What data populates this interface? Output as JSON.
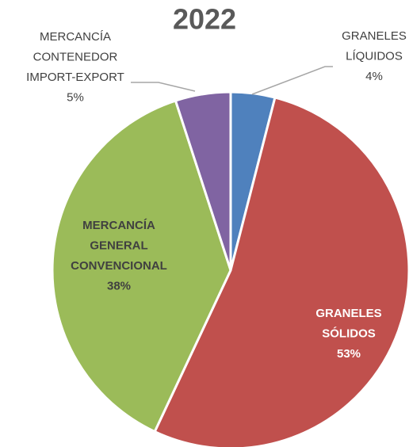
{
  "chart_data": {
    "type": "pie",
    "title": "2022",
    "categories": [
      "GRANELES LÍQUIDOS",
      "GRANELES SÓLIDOS",
      "MERCANCÍA GENERAL CONVENCIONAL",
      "MERCANCÍA CONTENEDOR IMPORT-EXPORT"
    ],
    "values": [
      4,
      53,
      38,
      5
    ],
    "value_labels": [
      "4%",
      "53%",
      "38%",
      "5%"
    ],
    "colors": [
      "#4f81bd",
      "#c0504d",
      "#9bbb59",
      "#8064a2"
    ]
  }
}
